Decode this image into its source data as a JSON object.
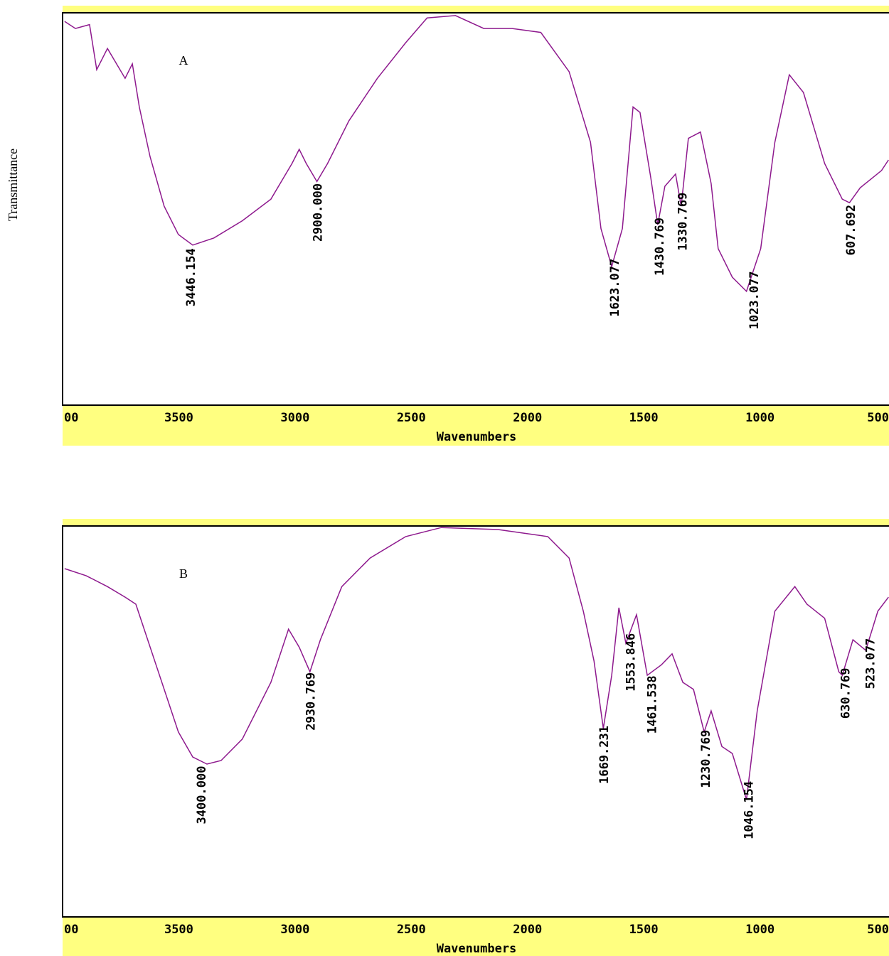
{
  "chart_data": [
    {
      "type": "line",
      "annotation": "A",
      "x_label": "Wavenumbers",
      "y_label": "Transmittance",
      "color": "#8e1a8e",
      "xlim": [
        4000,
        445
      ],
      "ylim": [
        0,
        100
      ],
      "xticks": [
        {
          "value": 4000,
          "label": "00"
        },
        3500,
        3000,
        2500,
        2000,
        1500,
        1000,
        500
      ],
      "x": [
        3991,
        3945,
        3884,
        3853,
        3807,
        3731,
        3700,
        3670,
        3624,
        3563,
        3502,
        3440,
        3349,
        3227,
        3104,
        3013,
        2982,
        2952,
        2906,
        2860,
        2768,
        2646,
        2524,
        2432,
        2310,
        2188,
        2066,
        1943,
        1821,
        1729,
        1684,
        1638,
        1592,
        1546,
        1516,
        1470,
        1440,
        1409,
        1363,
        1339,
        1308,
        1256,
        1210,
        1180,
        1119,
        1058,
        997,
        936,
        874,
        813,
        722,
        646,
        615,
        569,
        477,
        447
      ],
      "values": [
        97.8,
        96,
        97,
        85.5,
        90.9,
        83.3,
        87,
        76,
        63.4,
        50.7,
        43.5,
        40.8,
        42.6,
        47,
        52.5,
        61.6,
        65.2,
        61.6,
        57,
        61.6,
        72.5,
        83.3,
        92.4,
        98.7,
        99.3,
        96,
        96,
        95,
        85,
        67,
        45,
        35.3,
        45,
        76,
        74.6,
        58,
        46,
        55.8,
        58.9,
        50.7,
        68,
        69.6,
        56.5,
        39.9,
        32.6,
        29,
        39.9,
        67,
        84.2,
        79.7,
        61.6,
        52.5,
        51.6,
        55.4,
        59.8,
        62.5
      ],
      "peaks": [
        {
          "value": 3446.154,
          "label": "3446.154"
        },
        {
          "value": 2900,
          "label": "2900.000"
        },
        {
          "value": 1623.077,
          "label": "1623.077"
        },
        {
          "value": 1430.769,
          "label": "1430.769"
        },
        {
          "value": 1330.769,
          "label": "1330.769"
        },
        {
          "value": 1023.077,
          "label": "1023.077"
        },
        {
          "value": 607.692,
          "label": "607.692"
        }
      ]
    },
    {
      "type": "line",
      "annotation": "B",
      "x_label": "Wavenumbers",
      "color": "#8e1a8e",
      "xlim": [
        4000,
        445
      ],
      "ylim": [
        0,
        100
      ],
      "xticks": [
        {
          "value": 4000,
          "label": "00"
        },
        3500,
        3000,
        2500,
        2000,
        1500,
        1000,
        500
      ],
      "x": [
        3991,
        3899,
        3807,
        3731,
        3685,
        3593,
        3502,
        3440,
        3379,
        3318,
        3227,
        3104,
        3028,
        2982,
        2936,
        2891,
        2799,
        2677,
        2524,
        2371,
        2127,
        1913,
        1821,
        1760,
        1714,
        1674,
        1638,
        1607,
        1577,
        1531,
        1485,
        1424,
        1378,
        1332,
        1286,
        1240,
        1210,
        1164,
        1119,
        1058,
        1012,
        936,
        850,
        798,
        722,
        661,
        646,
        600,
        545,
        493,
        447
      ],
      "values": [
        89.1,
        87.3,
        84.5,
        81.8,
        80,
        63.6,
        47.3,
        40.9,
        39.1,
        40,
        45.5,
        60,
        73.6,
        69,
        62.7,
        70.9,
        84.5,
        91.8,
        97.3,
        99.6,
        99.1,
        97.3,
        91.8,
        78.2,
        65.5,
        48.2,
        61.8,
        79.1,
        70,
        77.3,
        61.8,
        64.5,
        67.3,
        60,
        58.2,
        47.3,
        52.7,
        43.6,
        41.8,
        30,
        52.7,
        78.2,
        84.5,
        80,
        76.4,
        62.7,
        61.8,
        70.9,
        68.2,
        78.2,
        81.8
      ],
      "peaks": [
        {
          "value": 3400,
          "label": "3400.000"
        },
        {
          "value": 2930.769,
          "label": "2930.769"
        },
        {
          "value": 1669.231,
          "label": "1669.231"
        },
        {
          "value": 1553.846,
          "label": "1553.846"
        },
        {
          "value": 1461.538,
          "label": "1461.538"
        },
        {
          "value": 1230.769,
          "label": "1230.769"
        },
        {
          "value": 1046.154,
          "label": "1046.154"
        },
        {
          "value": 630.769,
          "label": "630.769"
        },
        {
          "value": 523.077,
          "label": "523.077"
        }
      ]
    }
  ]
}
